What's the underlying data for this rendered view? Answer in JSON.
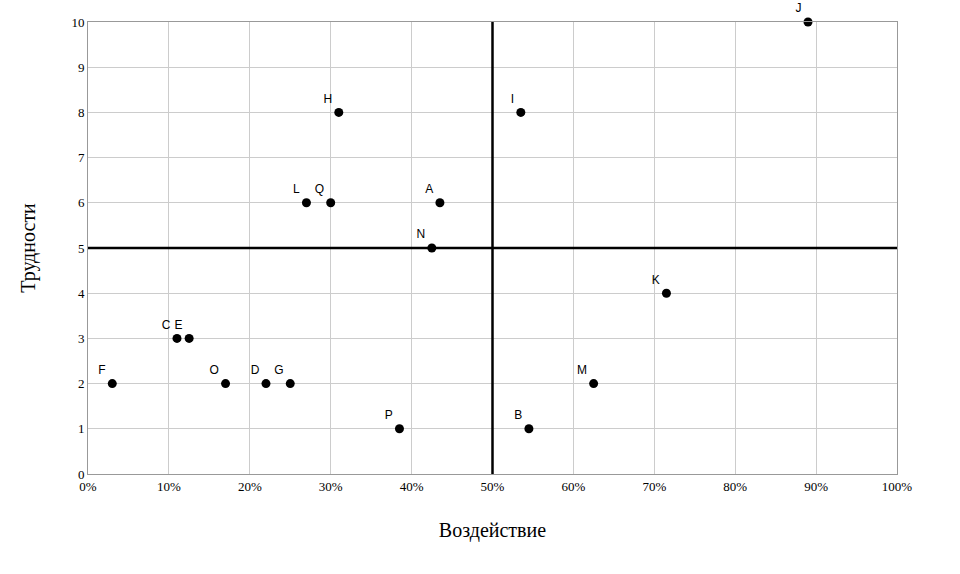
{
  "chart_data": {
    "type": "scatter",
    "x_label": "Воздействие",
    "y_label": "Трудности",
    "labels": [
      "J",
      "H",
      "I",
      "L",
      "Q",
      "A",
      "N",
      "K",
      "C",
      "E",
      "F",
      "O",
      "D",
      "G",
      "M",
      "P",
      "B"
    ],
    "x": [
      89,
      31,
      53.5,
      27,
      30,
      43.5,
      42.5,
      71.5,
      11,
      12.5,
      3,
      17,
      22,
      25,
      62.5,
      38.5,
      54.5
    ],
    "y": [
      10,
      8,
      8,
      6,
      6,
      6,
      5,
      4,
      3,
      3,
      2,
      2,
      2,
      2,
      2,
      1,
      1
    ],
    "color": "#000000",
    "marker": "circle",
    "xlim": [
      0,
      100
    ],
    "xticks": [
      {
        "value": 0,
        "label": "0%"
      },
      {
        "value": 10,
        "label": "10%"
      },
      {
        "value": 20,
        "label": "20%"
      },
      {
        "value": 30,
        "label": "30%"
      },
      {
        "value": 40,
        "label": "40%"
      },
      {
        "value": 50,
        "label": "50%"
      },
      {
        "value": 60,
        "label": "60%"
      },
      {
        "value": 70,
        "label": "70%"
      },
      {
        "value": 80,
        "label": "80%"
      },
      {
        "value": 90,
        "label": "90%"
      },
      {
        "value": 100,
        "label": "100%"
      }
    ],
    "ylim": [
      0,
      10
    ],
    "yticks": [
      0,
      1,
      2,
      3,
      4,
      5,
      6,
      7,
      8,
      9,
      10
    ],
    "reference_lines": {
      "x": 50,
      "y": 5
    },
    "grid": true
  }
}
